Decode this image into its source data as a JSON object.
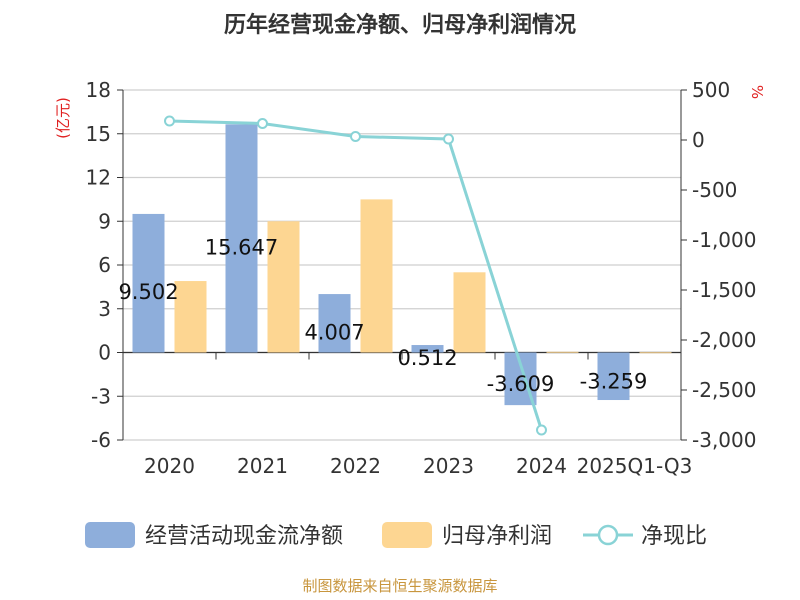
{
  "chart_data": {
    "type": "bar+line",
    "title": "历年经营现金净额、归母净利润情况",
    "categories": [
      "2020",
      "2021",
      "2022",
      "2023",
      "2024",
      "2025Q1-Q3"
    ],
    "left_axis": {
      "label": "(亿元)",
      "min": -6,
      "max": 18,
      "ticks": [
        18,
        15,
        12,
        9,
        6,
        3,
        0,
        -3,
        -6
      ]
    },
    "right_axis": {
      "label": "%",
      "min": -3000,
      "max": 500,
      "ticks": [
        500,
        0,
        -500,
        -1000,
        -1500,
        -2000,
        -2500,
        -3000
      ],
      "tick_labels": [
        "500",
        "0",
        "-500",
        "-1,000",
        "-1,500",
        "-2,000",
        "-2,500",
        "-3,000"
      ]
    },
    "series": [
      {
        "name": "经营活动现金流净额",
        "type": "bar",
        "axis": "left",
        "color": "#8eaedb",
        "values": [
          9.502,
          15.647,
          4.007,
          0.512,
          -3.609,
          -3.259
        ],
        "data_labels": [
          "9.502",
          "15.647",
          "4.007",
          "0.512",
          "-3.609",
          "-3.259"
        ]
      },
      {
        "name": "归母净利润",
        "type": "bar",
        "axis": "left",
        "color": "#fdd692",
        "values": [
          4.9,
          9.0,
          10.5,
          5.5,
          0.05,
          0.02
        ]
      },
      {
        "name": "净现比",
        "type": "line",
        "axis": "right",
        "color": "#89d3d6",
        "values": [
          190,
          165,
          35,
          10,
          -2900,
          null
        ]
      }
    ],
    "legend_position": "bottom"
  },
  "footer": "制图数据来自恒生聚源数据库"
}
